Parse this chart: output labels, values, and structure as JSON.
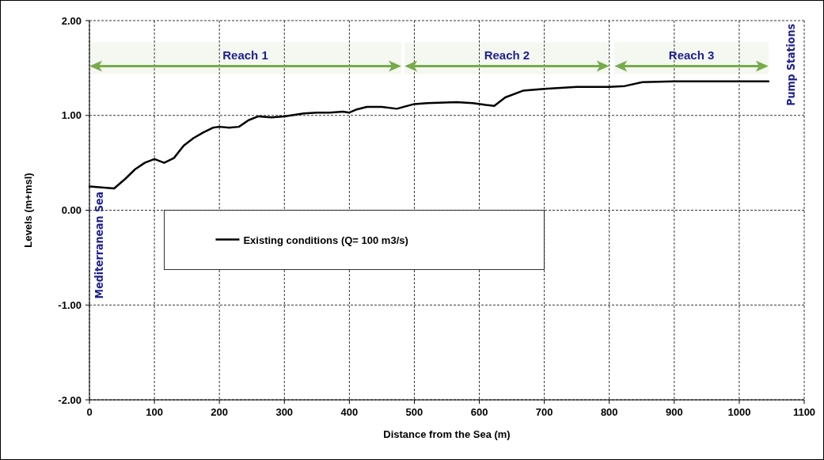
{
  "chart_data": {
    "type": "line",
    "xlabel": "Distance from the Sea (m)",
    "ylabel": "Levels (m+msl)",
    "xlim": [
      0,
      1100
    ],
    "xticks": [
      0,
      100,
      200,
      300,
      400,
      500,
      600,
      700,
      800,
      900,
      1000,
      1100
    ],
    "ylim": [
      -2,
      2
    ],
    "yticks": [
      {
        "value": -2,
        "label": "-2.00"
      },
      {
        "value": -1,
        "label": "-1.00"
      },
      {
        "value": 0,
        "label": "0.00"
      },
      {
        "value": 1,
        "label": "1.00"
      },
      {
        "value": 2,
        "label": "2.00"
      }
    ],
    "grid": true,
    "legend": "center",
    "line_style": "solid",
    "marker": "none",
    "series": [
      {
        "name": "Existing conditions (Q= 100 m3/s)",
        "color": "#000000",
        "x": [
          0,
          38,
          55,
          70,
          85,
          100,
          115,
          130,
          145,
          160,
          175,
          190,
          200,
          215,
          230,
          245,
          260,
          280,
          300,
          330,
          350,
          370,
          390,
          400,
          410,
          427,
          450,
          473,
          500,
          520,
          565,
          590,
          610,
          623,
          640,
          667,
          700,
          750,
          800,
          824,
          851,
          900,
          950,
          1000,
          1045
        ],
        "values": [
          0.25,
          0.23,
          0.33,
          0.43,
          0.5,
          0.54,
          0.5,
          0.55,
          0.68,
          0.76,
          0.82,
          0.87,
          0.88,
          0.87,
          0.88,
          0.95,
          0.99,
          0.98,
          0.99,
          1.02,
          1.03,
          1.03,
          1.04,
          1.03,
          1.06,
          1.09,
          1.09,
          1.07,
          1.12,
          1.13,
          1.14,
          1.13,
          1.11,
          1.1,
          1.19,
          1.26,
          1.28,
          1.3,
          1.3,
          1.31,
          1.35,
          1.36,
          1.36,
          1.36,
          1.36
        ]
      }
    ],
    "bands": [
      {
        "axis": "x",
        "from": 0,
        "to": 480,
        "label": "Reach 1",
        "color": "#77ab4a"
      },
      {
        "axis": "x",
        "from": 485,
        "to": 800,
        "label": "Reach 2",
        "color": "#77ab4a"
      },
      {
        "axis": "x",
        "from": 808,
        "to": 1045,
        "label": "Reach 3",
        "color": "#77ab4a"
      }
    ],
    "annotations": [
      "Mediterranean Sea",
      "Pump Stations"
    ]
  }
}
